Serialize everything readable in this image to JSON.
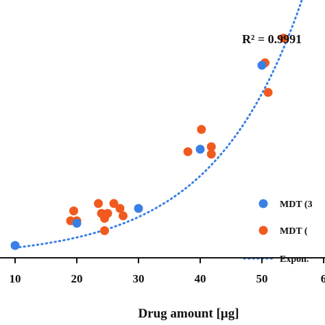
{
  "chart_data": {
    "type": "scatter",
    "title": "",
    "xlabel": "Drug amount [µg]",
    "ylabel": "",
    "xlim": [
      10,
      60
    ],
    "ylim": [
      0,
      100
    ],
    "x_ticks": [
      "10",
      "20",
      "30",
      "40",
      "50",
      "6"
    ],
    "grid": false,
    "legend_position": "bottom-right",
    "annotation": "R² = 0.9991",
    "series": [
      {
        "name": "MDT (3",
        "color": "#3a7fe6",
        "points": [
          [
            10,
            5
          ],
          [
            20,
            14
          ],
          [
            30,
            20
          ],
          [
            40,
            44
          ],
          [
            50,
            78
          ]
        ]
      },
      {
        "name": "MDT (",
        "color": "#f05a1e",
        "points": [
          [
            19,
            15
          ],
          [
            19.5,
            19
          ],
          [
            20,
            15
          ],
          [
            23.5,
            22
          ],
          [
            24,
            18
          ],
          [
            24.5,
            16
          ],
          [
            24.5,
            11
          ],
          [
            25,
            18
          ],
          [
            26,
            22
          ],
          [
            27,
            20
          ],
          [
            27.5,
            17
          ],
          [
            38,
            43
          ],
          [
            40.2,
            52
          ],
          [
            41.8,
            45
          ],
          [
            41.8,
            42
          ],
          [
            50.5,
            79
          ],
          [
            51,
            67
          ],
          [
            53.5,
            89
          ]
        ]
      },
      {
        "name": "Expon.",
        "color": "#3a7fe6",
        "style": "dotted",
        "fit": {
          "a": 2.05,
          "b": 0.0696,
          "x_range": [
            10,
            60
          ]
        }
      }
    ]
  }
}
